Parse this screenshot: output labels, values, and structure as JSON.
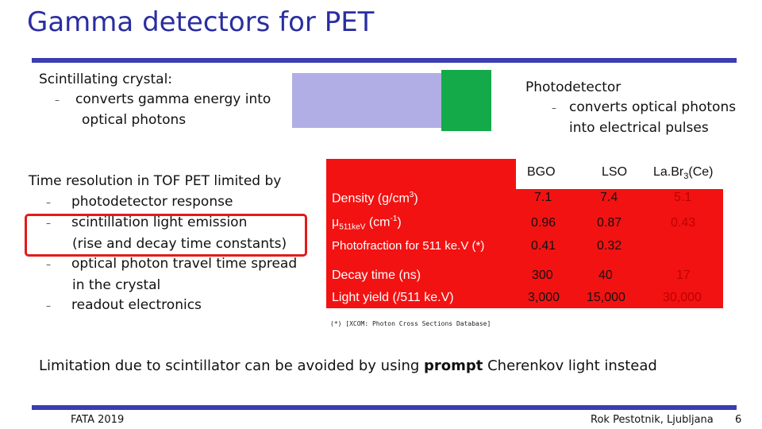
{
  "title": "Gamma detectors for PET",
  "scintillator": {
    "heading": "Scintillating crystal:",
    "dash": "–",
    "line1": "converts gamma energy into",
    "line2": "optical photons"
  },
  "photodetector": {
    "heading": "Photodetector",
    "dash": "–",
    "line1": "converts optical photons",
    "line2": "into electrical pulses"
  },
  "time_resolution": {
    "heading": "Time resolution in TOF PET limited by",
    "dash": "–",
    "items": [
      {
        "line1": "photodetector response"
      },
      {
        "line1": "scintillation light emission",
        "line2": "(rise and decay time constants)"
      },
      {
        "line1": "optical photon travel time spread",
        "line2": "in the crystal"
      },
      {
        "line1": "readout electronics"
      }
    ]
  },
  "table": {
    "columns": [
      "BGO",
      "LSO",
      "La.Br3(Ce)"
    ],
    "col3_parts": {
      "a": "La.Br",
      "sub": "3",
      "b": "(Ce)"
    },
    "rows": [
      {
        "label": "Density (g/cm3)",
        "label_a": "Density (g/cm",
        "label_sup": "3",
        "label_b": ")",
        "values": [
          "7.1",
          "7.4",
          "5.1"
        ]
      },
      {
        "label": "μ511keV (cm-1)",
        "label_a": "μ",
        "label_sub": "511keV",
        "label_b": " (cm",
        "label_sup": "-1",
        "label_c": ")",
        "values": [
          "0.96",
          "0.87",
          "0.43"
        ]
      },
      {
        "label": "Photofraction for 511 ke.V (*)",
        "values": [
          "0.41",
          "0.32",
          ""
        ]
      },
      {
        "label": "Decay time (ns)",
        "values": [
          "300",
          "40",
          "17"
        ]
      },
      {
        "label": "Light yield (/511 ke.V)",
        "values": [
          "3,000",
          "15,000",
          "30,000"
        ]
      }
    ]
  },
  "footnote": "(*) [XCOM: Photon Cross Sections Database]",
  "limitation": {
    "before": "Limitation due to scintillator can be avoided by using ",
    "bold": "prompt",
    "after": " Cherenkov light instead"
  },
  "footer": {
    "left": "FATA 2019",
    "right": "Rok Pestotnik, Ljubljana",
    "page": "6"
  },
  "colors": {
    "title": "#2a2ea0",
    "rule": "#3a3eb0",
    "crystal": "#b0aee4",
    "photodetector": "#14aa4a",
    "table_red": "#f21212",
    "highlight": "#e21a1a"
  }
}
